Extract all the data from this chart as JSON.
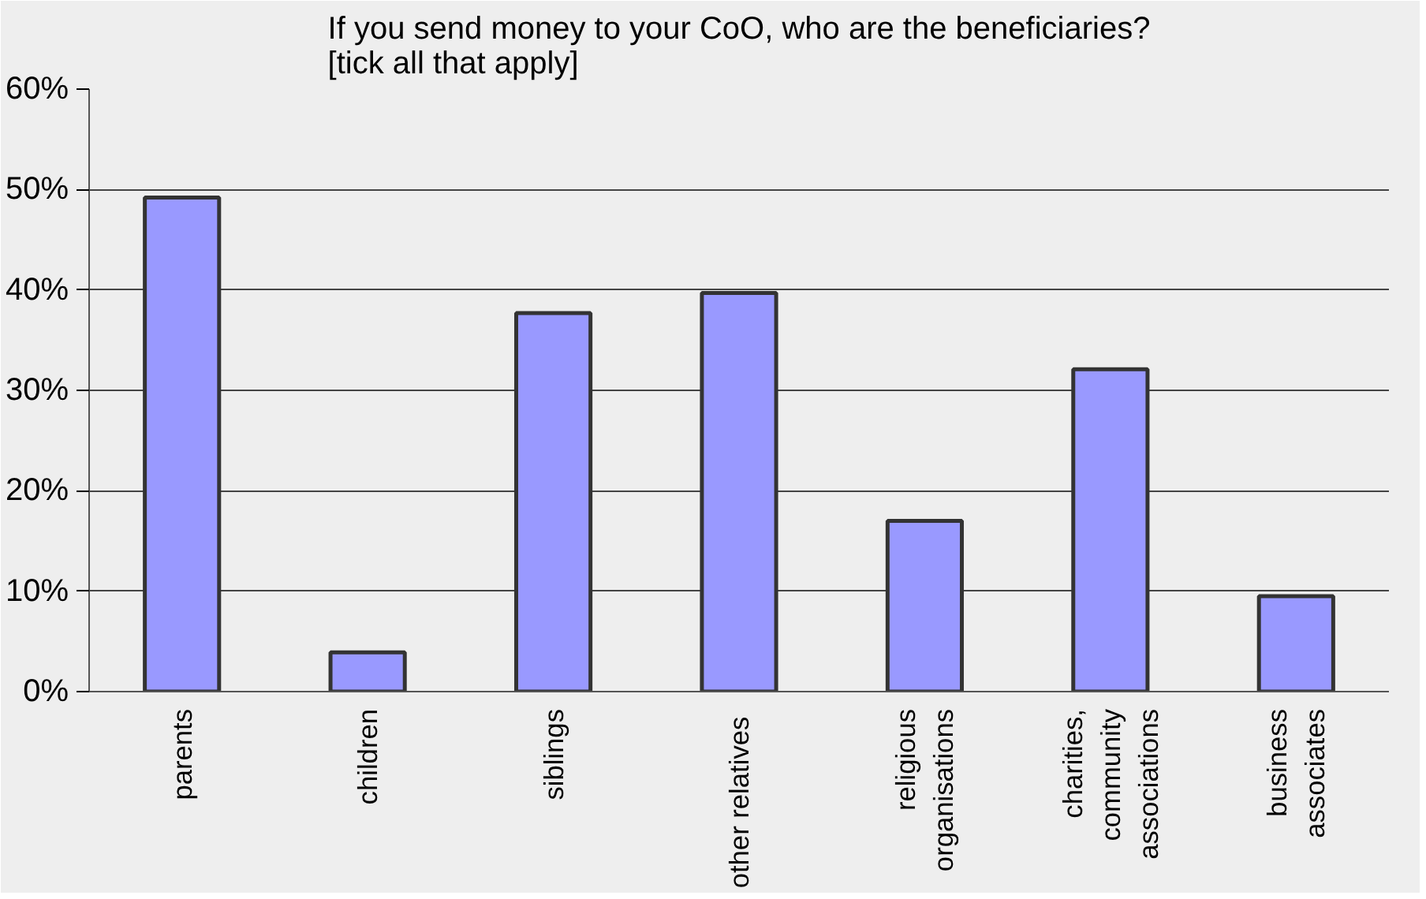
{
  "chart_data": {
    "type": "bar",
    "title": "If you send money to your CoO, who are the beneficiaries?\n[tick all that apply]",
    "categories": [
      "parents",
      "children",
      "siblings",
      "other  relatives",
      "religious\norganisations",
      "charities,\ncommunity\nassociations",
      "business\nassociates"
    ],
    "values": [
      49.2,
      3.9,
      37.7,
      39.7,
      17.0,
      32.1,
      9.5
    ],
    "color": "#9999ff",
    "ylim": [
      0,
      60
    ],
    "yticks": [
      {
        "value": 0,
        "label": "0%"
      },
      {
        "value": 10,
        "label": "10%"
      },
      {
        "value": 20,
        "label": "20%"
      },
      {
        "value": 30,
        "label": "30%"
      },
      {
        "value": 40,
        "label": "40%"
      },
      {
        "value": 50,
        "label": "50%"
      },
      {
        "value": 60,
        "label": "60%"
      }
    ],
    "grid": "y"
  }
}
